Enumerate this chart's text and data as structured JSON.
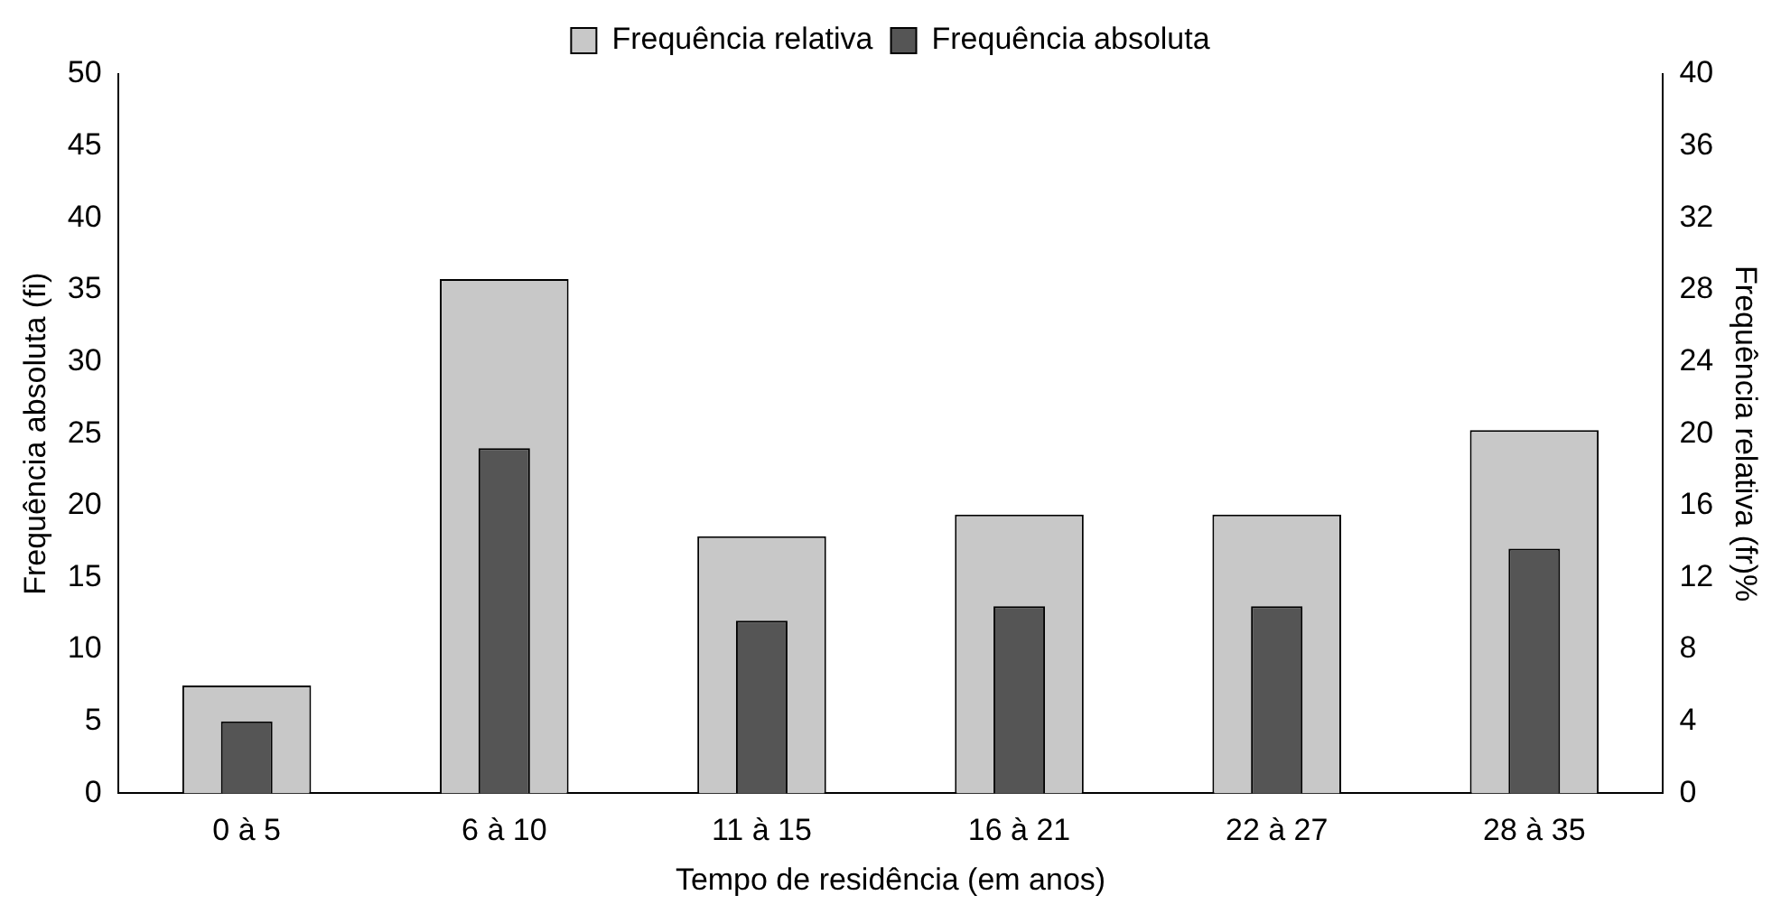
{
  "chart_data": {
    "type": "bar",
    "xlabel": "Tempo de residência (em anos)",
    "ylabel": "Frequência absoluta (fi)",
    "y2label": "Frequência relativa (fr)%",
    "categories": [
      "0 à 5",
      "6 à 10",
      "11 à 15",
      "16 à 21",
      "22 à 27",
      "28 à 35"
    ],
    "series": [
      {
        "name": "Frequência relativa",
        "color": "#c8c8c8",
        "axis": "y2",
        "values": [
          6.0,
          28.6,
          14.3,
          15.5,
          15.5,
          20.2
        ]
      },
      {
        "name": "Frequência absoluta",
        "color": "#555555",
        "axis": "y",
        "values": [
          5,
          24,
          12,
          13,
          13,
          17
        ]
      }
    ],
    "ylim": [
      0,
      50
    ],
    "yticks": [
      0,
      5,
      10,
      15,
      20,
      25,
      30,
      35,
      40,
      45,
      50
    ],
    "y2lim": [
      0,
      40
    ],
    "y2ticks": [
      0,
      4,
      8,
      12,
      16,
      20,
      24,
      28,
      32,
      36,
      40
    ],
    "grid": false,
    "legend": "top"
  }
}
